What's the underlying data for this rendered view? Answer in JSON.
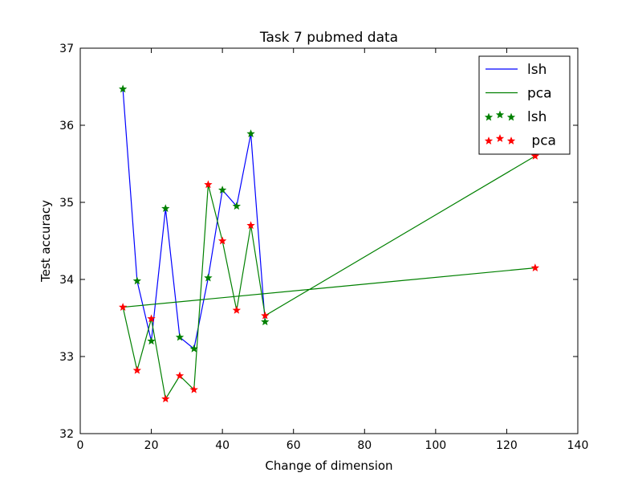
{
  "chart_data": {
    "type": "line",
    "title": "Task 7 pubmed data",
    "xlabel": "Change of dimension",
    "ylabel": "Test accuracy",
    "xlim": [
      0,
      140
    ],
    "ylim": [
      32,
      37
    ],
    "xticks": [
      0,
      20,
      40,
      60,
      80,
      100,
      120,
      140
    ],
    "yticks": [
      32,
      33,
      34,
      35,
      36,
      37
    ],
    "grid": false,
    "legend_position": "upper right",
    "series": [
      {
        "name": "lsh",
        "kind": "line",
        "color": "#0000ff",
        "x": [
          12,
          16,
          20,
          24,
          28,
          32,
          36,
          40,
          44,
          48,
          52
        ],
        "y": [
          36.47,
          33.98,
          33.2,
          34.92,
          33.25,
          33.1,
          34.02,
          35.16,
          34.95,
          35.89,
          33.45
        ]
      },
      {
        "name": "pca",
        "kind": "line",
        "color": "#008000",
        "x": [
          128,
          12,
          16,
          20,
          24,
          28,
          32,
          36,
          40,
          44,
          48,
          52,
          128
        ],
        "y": [
          34.15,
          33.64,
          32.82,
          33.49,
          32.45,
          32.75,
          32.57,
          35.23,
          34.5,
          33.6,
          34.7,
          33.53,
          35.6
        ]
      },
      {
        "name": "lsh",
        "kind": "markers",
        "marker": "star",
        "color": "#008000",
        "x": [
          12,
          16,
          20,
          24,
          28,
          32,
          36,
          40,
          44,
          48,
          52
        ],
        "y": [
          36.47,
          33.98,
          33.2,
          34.92,
          33.25,
          33.1,
          34.02,
          35.16,
          34.95,
          35.89,
          33.45
        ]
      },
      {
        "name": " pca",
        "kind": "markers",
        "marker": "star",
        "color": "#ff0000",
        "x": [
          12,
          16,
          20,
          24,
          28,
          32,
          36,
          40,
          44,
          48,
          52,
          128,
          128
        ],
        "y": [
          33.64,
          32.82,
          33.49,
          32.45,
          32.75,
          32.57,
          35.23,
          34.5,
          33.6,
          34.7,
          33.53,
          34.15,
          35.6
        ]
      }
    ]
  }
}
